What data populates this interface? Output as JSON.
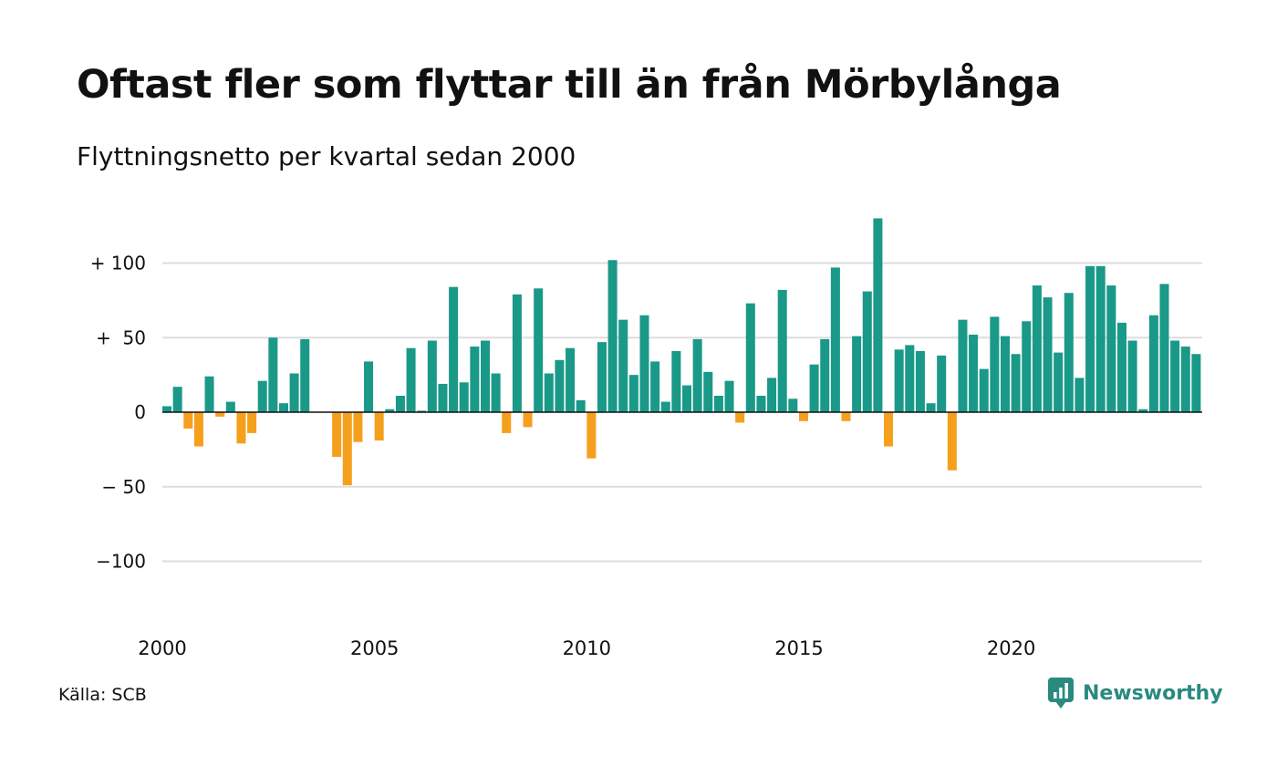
{
  "chart_data": {
    "type": "bar",
    "title": "Oftast fler som flyttar till än från Mörbylånga",
    "subtitle": "Flyttningsnetto per kvartal sedan 2000",
    "x_start": "2000 Q1",
    "x_step": "kvartal",
    "values": [
      4,
      17,
      -11,
      -23,
      24,
      -3,
      7,
      -21,
      -14,
      21,
      50,
      6,
      26,
      49,
      0,
      0,
      -30,
      -49,
      -20,
      34,
      -19,
      2,
      11,
      43,
      1,
      48,
      19,
      84,
      20,
      44,
      48,
      26,
      -14,
      79,
      -10,
      83,
      26,
      35,
      43,
      8,
      -31,
      47,
      102,
      62,
      25,
      65,
      34,
      7,
      41,
      18,
      49,
      27,
      11,
      21,
      -7,
      73,
      11,
      23,
      82,
      9,
      -6,
      32,
      49,
      97,
      -6,
      51,
      81,
      130,
      -23,
      42,
      45,
      41,
      6,
      38,
      -39,
      62,
      52,
      29,
      64,
      51,
      39,
      61,
      85,
      77,
      40,
      80,
      23,
      98,
      98,
      85,
      60,
      48,
      2,
      65,
      86,
      48,
      44,
      39
    ],
    "ylim": [
      -150,
      135
    ],
    "yticks": [
      100,
      50,
      0,
      -50,
      -100
    ],
    "ytick_labels": [
      "+ 100",
      "+  50",
      "0",
      "− 50",
      "−100"
    ],
    "xticks": [
      2000,
      2005,
      2010,
      2015,
      2020
    ],
    "xtick_labels": [
      "2000",
      "2005",
      "2010",
      "2015",
      "2020"
    ],
    "grid": true,
    "positive_color": "#1a9988",
    "negative_color": "#f5a01d",
    "gridline_color": "#dddddd",
    "zero_line_color": "#111111"
  },
  "footer": {
    "source": "Källa: SCB",
    "brand": "Newsworthy",
    "brand_icon": "newsworthy-logo-icon",
    "brand_color": "#2a8a80"
  }
}
